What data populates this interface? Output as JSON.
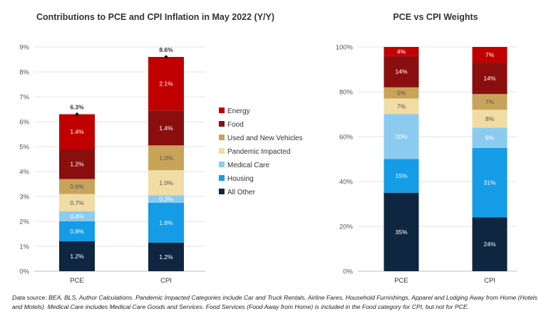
{
  "colors": {
    "Energy": "#c00000",
    "Food": "#8b0e0e",
    "Used and New Vehicles": "#c9a35a",
    "Pandemic Impacted": "#f1dca3",
    "Medical Care": "#8ccbf0",
    "Housing": "#149ce6",
    "All Other": "#0f2641"
  },
  "chart_data": [
    {
      "type": "bar",
      "stacked": true,
      "title": "Contributions to PCE and CPI Inflation in May 2022 (Y/Y)",
      "categories": [
        "PCE",
        "CPI"
      ],
      "ylim": [
        0,
        9
      ],
      "yticks": [
        "0%",
        "1%",
        "2%",
        "3%",
        "4%",
        "5%",
        "6%",
        "7%",
        "8%",
        "9%"
      ],
      "totals": [
        6.3,
        8.6
      ],
      "total_labels": [
        "6.3%",
        "8.6%"
      ],
      "series": [
        {
          "name": "All Other",
          "values": [
            1.2,
            1.15
          ],
          "labels": [
            "1.2%",
            "1.2%"
          ]
        },
        {
          "name": "Housing",
          "values": [
            0.8,
            1.6
          ],
          "labels": [
            "0.8%",
            "1.6%"
          ]
        },
        {
          "name": "Medical Care",
          "values": [
            0.4,
            0.3
          ],
          "labels": [
            "0.4%",
            "0.3%"
          ]
        },
        {
          "name": "Pandemic Impacted",
          "values": [
            0.7,
            1.0
          ],
          "labels": [
            "0.7%",
            "1.0%"
          ]
        },
        {
          "name": "Used and New Vehicles",
          "values": [
            0.6,
            1.0
          ],
          "labels": [
            "0.6%",
            "1.0%"
          ]
        },
        {
          "name": "Food",
          "values": [
            1.2,
            1.4
          ],
          "labels": [
            "1.2%",
            "1.4%"
          ]
        },
        {
          "name": "Energy",
          "values": [
            1.4,
            2.15
          ],
          "labels": [
            "1.4%",
            "2.1%"
          ]
        }
      ],
      "legend": [
        "Energy",
        "Food",
        "Used and New Vehicles",
        "Pandemic Impacted",
        "Medical Care",
        "Housing",
        "All Other"
      ],
      "legend_position": "right"
    },
    {
      "type": "bar",
      "stacked": true,
      "title": "PCE vs CPI Weights",
      "categories": [
        "PCE",
        "CPI"
      ],
      "ylim": [
        0,
        100
      ],
      "yticks": [
        "0%",
        "20%",
        "40%",
        "60%",
        "80%",
        "100%"
      ],
      "series": [
        {
          "name": "All Other",
          "values": [
            35,
            24
          ],
          "labels": [
            "35%",
            "24%"
          ]
        },
        {
          "name": "Housing",
          "values": [
            15,
            31
          ],
          "labels": [
            "15%",
            "31%"
          ]
        },
        {
          "name": "Medical Care",
          "values": [
            20,
            9
          ],
          "labels": [
            "20%",
            "9%"
          ]
        },
        {
          "name": "Pandemic Impacted",
          "values": [
            7,
            8
          ],
          "labels": [
            "7%",
            "8%"
          ]
        },
        {
          "name": "Used and New Vehicles",
          "values": [
            5,
            7
          ],
          "labels": [
            "5%",
            "7%"
          ]
        },
        {
          "name": "Food",
          "values": [
            14,
            14
          ],
          "labels": [
            "14%",
            "14%"
          ]
        },
        {
          "name": "Energy",
          "values": [
            4,
            7
          ],
          "labels": [
            "4%",
            "7%"
          ]
        }
      ]
    }
  ],
  "footnote": "Data source: BEA, BLS, Author Calculations. Pandemic Impacted Categories include Car and Truck Rentals, Airline Fares, Household Furnishings, Apparel and Lodging Away from Home (Hotels and Motels). Medical Care includes Medical Care Goods and Services. Food Services (Food Away from Home) is included in the Food category for CPI, but not for PCE."
}
